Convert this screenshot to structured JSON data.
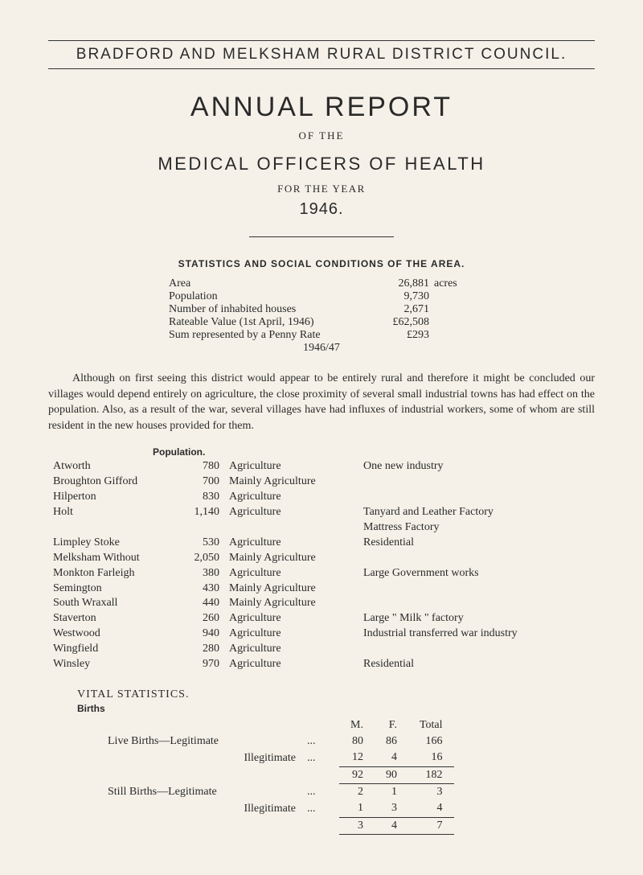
{
  "council_name": "BRADFORD AND MELKSHAM RURAL DISTRICT COUNCIL.",
  "title": "ANNUAL REPORT",
  "of_the": "OF THE",
  "officers": "MEDICAL OFFICERS OF HEALTH",
  "for_year": "FOR THE YEAR",
  "year": "1946.",
  "stats_heading": "STATISTICS AND SOCIAL CONDITIONS OF THE AREA.",
  "area_stats": {
    "rows": [
      {
        "label": "Area",
        "value": "26,881",
        "unit": "acres"
      },
      {
        "label": "Population",
        "value": "9,730",
        "unit": ""
      },
      {
        "label": "Number of inhabited houses",
        "value": "2,671",
        "unit": ""
      },
      {
        "label": "Rateable Value (1st April, 1946)",
        "value": "£62,508",
        "unit": ""
      },
      {
        "label": "Sum represented by a Penny Rate",
        "value": "£293",
        "unit": ""
      }
    ],
    "footer": "1946/47"
  },
  "paragraph": "Although on first seeing this district would appear to be entirely rural and therefore it might be concluded our villages would depend entirely on agriculture, the close proximity of several small industrial towns has had effect on the population. Also, as a result of the war, several villages have had influxes of industrial workers, some of whom are still resident in the new houses provided for them.",
  "population": {
    "heading": "Population.",
    "rows": [
      {
        "place": "Atworth",
        "num": "780",
        "type": "Agriculture",
        "note": "One new industry"
      },
      {
        "place": "Broughton Gifford",
        "num": "700",
        "type": "Mainly Agriculture",
        "note": ""
      },
      {
        "place": "Hilperton",
        "num": "830",
        "type": "Agriculture",
        "note": ""
      },
      {
        "place": "Holt",
        "num": "1,140",
        "type": "Agriculture",
        "note": "Tanyard and Leather Factory"
      },
      {
        "place": "",
        "num": "",
        "type": "",
        "note": "Mattress Factory"
      },
      {
        "place": "Limpley Stoke",
        "num": "530",
        "type": "Agriculture",
        "note": "Residential"
      },
      {
        "place": "Melksham Without",
        "num": "2,050",
        "type": "Mainly Agriculture",
        "note": ""
      },
      {
        "place": "Monkton Farleigh",
        "num": "380",
        "type": "Agriculture",
        "note": "Large Government works"
      },
      {
        "place": "Semington",
        "num": "430",
        "type": "Mainly Agriculture",
        "note": ""
      },
      {
        "place": "South Wraxall",
        "num": "440",
        "type": "Mainly Agriculture",
        "note": ""
      },
      {
        "place": "Staverton",
        "num": "260",
        "type": "Agriculture",
        "note": "Large \" Milk \" factory"
      },
      {
        "place": "Westwood",
        "num": "940",
        "type": "Agriculture",
        "note": "Industrial transferred war industry"
      },
      {
        "place": "Wingfield",
        "num": "280",
        "type": "Agriculture",
        "note": ""
      },
      {
        "place": "Winsley",
        "num": "970",
        "type": "Agriculture",
        "note": "Residential"
      }
    ]
  },
  "vital": {
    "heading": "VITAL STATISTICS.",
    "births": "Births",
    "columns": {
      "m": "M.",
      "f": "F.",
      "total": "Total"
    },
    "live": {
      "legit": {
        "label": "Live Births—Legitimate",
        "m": "80",
        "f": "86",
        "total": "166"
      },
      "illegit": {
        "label": "Illegitimate",
        "m": "12",
        "f": "4",
        "total": "16"
      },
      "sum": {
        "m": "92",
        "f": "90",
        "total": "182"
      }
    },
    "still": {
      "legit": {
        "label": "Still Births—Legitimate",
        "m": "2",
        "f": "1",
        "total": "3"
      },
      "illegit": {
        "label": "Illegitimate",
        "m": "1",
        "f": "3",
        "total": "4"
      },
      "sum": {
        "m": "3",
        "f": "4",
        "total": "7"
      }
    }
  }
}
